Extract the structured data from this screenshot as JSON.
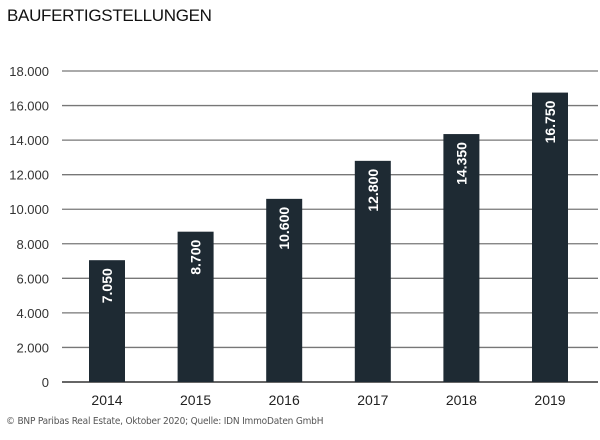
{
  "chart_data": {
    "type": "bar",
    "title": "BAUFERTIGSTELLUNGEN",
    "categories": [
      "2014",
      "2015",
      "2016",
      "2017",
      "2018",
      "2019"
    ],
    "values": [
      7050,
      8700,
      10600,
      12800,
      14350,
      16750
    ],
    "data_labels": [
      "7.050",
      "8.700",
      "10.600",
      "12.800",
      "14.350",
      "16.750"
    ],
    "ylim": [
      0,
      18000
    ],
    "yticks": [
      0,
      2000,
      4000,
      6000,
      8000,
      10000,
      12000,
      14000,
      16000,
      18000
    ],
    "ytick_labels": [
      "0",
      "2.000",
      "4.000",
      "6.000",
      "8.000",
      "10.000",
      "12.000",
      "14.000",
      "16.000",
      "18.000"
    ],
    "grid": true,
    "bar_color": "#1e2a33",
    "source": "© BNP Paribas Real Estate, Oktober 2020; Quelle: IDN ImmoDaten GmbH"
  }
}
